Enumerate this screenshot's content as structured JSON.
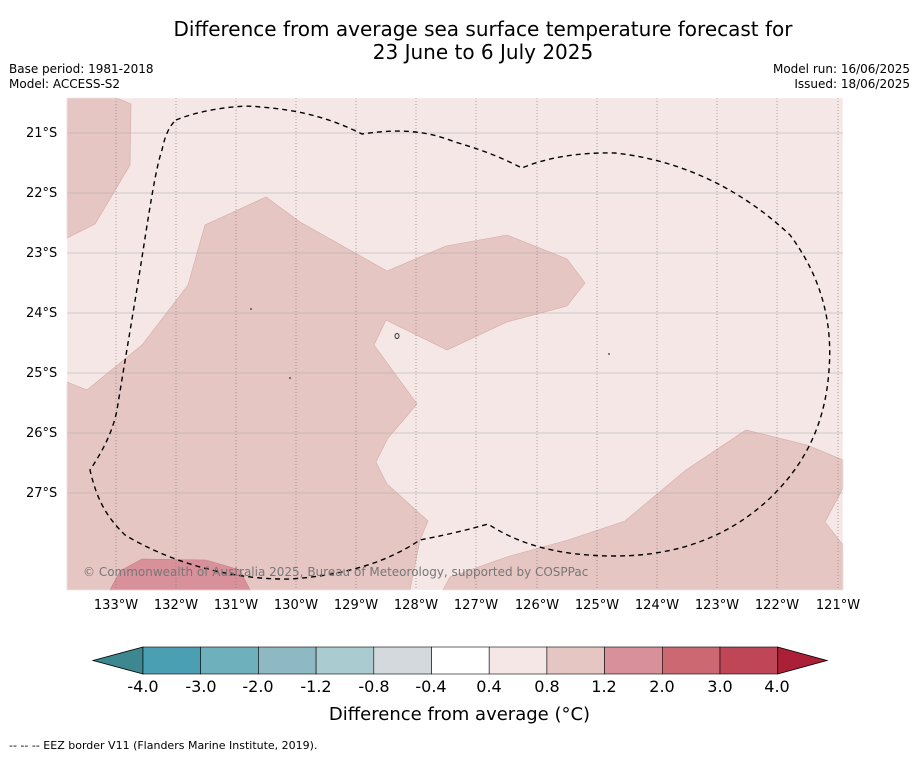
{
  "title_line1": "Difference from average sea surface temperature forecast for",
  "title_line2": "23 June to 6 July 2025",
  "base_period": "Base period: 1981-2018",
  "model": "Model: ACCESS-S2",
  "model_run": "Model run: 16/06/2025",
  "issued": "Issued: 18/06/2025",
  "copyright": "© Commonwealth of Australia 2025, Bureau of Meteorology, supported by COSPPac",
  "lat_labels": [
    "21°S",
    "22°S",
    "23°S",
    "24°S",
    "25°S",
    "26°S",
    "27°S"
  ],
  "lon_labels": [
    "133°W",
    "132°W",
    "131°W",
    "130°W",
    "129°W",
    "128°W",
    "127°W",
    "126°W",
    "125°W",
    "124°W",
    "123°W",
    "122°W",
    "121°W"
  ],
  "colorbar": {
    "ticks": [
      "-4.0",
      "-3.0",
      "-2.0",
      "-1.2",
      "-0.8",
      "-0.4",
      "0.4",
      "0.8",
      "1.2",
      "2.0",
      "3.0",
      "4.0"
    ],
    "colors": [
      "#4aa0b2",
      "#6fb0bd",
      "#8eb9c4",
      "#aacbcf",
      "#d3d9dc",
      "#ffffff",
      "#f4e7e6",
      "#e6c6c2",
      "#d8909a",
      "#cb6872",
      "#bf4656"
    ],
    "under_color": "#3d8890",
    "over_color": "#ab1f37",
    "title": "Difference from average (°C)"
  },
  "map": {
    "background_color": "#f4e7e6",
    "warm_color": "#e6c6c2",
    "hot_color": "#d8909a"
  },
  "footnote": "-- -- -- EEZ border V11 (Flanders Marine Institute, 2019)."
}
